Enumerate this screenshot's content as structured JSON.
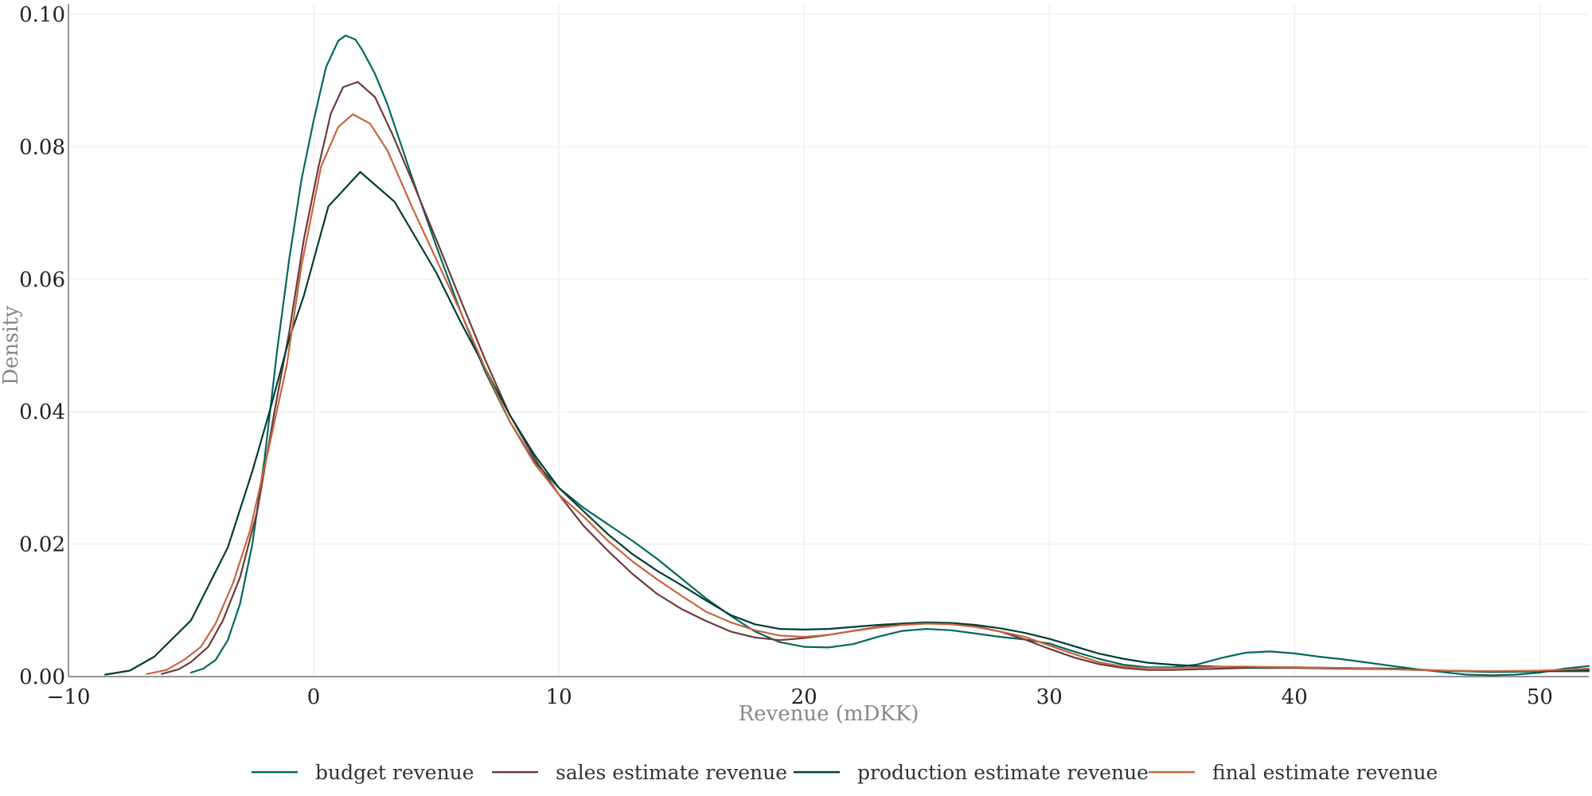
{
  "chart_data": {
    "type": "line",
    "title": "",
    "xlabel": "Revenue (mDKK)",
    "ylabel": "Density",
    "xlim": [
      -10,
      52
    ],
    "ylim": [
      0,
      0.1
    ],
    "x_ticks": [
      -10,
      0,
      10,
      20,
      30,
      40,
      50
    ],
    "x_tick_labels": [
      "−10",
      "0",
      "10",
      "20",
      "30",
      "40",
      "50"
    ],
    "y_ticks": [
      0,
      0.02,
      0.04,
      0.06,
      0.08,
      0.1
    ],
    "y_tick_labels": [
      "0.00",
      "0.02",
      "0.04",
      "0.06",
      "0.08",
      "0.10"
    ],
    "grid": true,
    "legend_position": "bottom-center",
    "series": [
      {
        "name": "budget revenue",
        "color": "#00695c",
        "points": [
          [
            -5,
            0.0006
          ],
          [
            -4.5,
            0.0012
          ],
          [
            -4,
            0.0025
          ],
          [
            -3.5,
            0.0055
          ],
          [
            -3,
            0.011
          ],
          [
            -2.5,
            0.02
          ],
          [
            -2,
            0.033
          ],
          [
            -1.5,
            0.049
          ],
          [
            -1,
            0.063
          ],
          [
            -0.5,
            0.075
          ],
          [
            0,
            0.084
          ],
          [
            0.5,
            0.092
          ],
          [
            1,
            0.096
          ],
          [
            1.3,
            0.0968
          ],
          [
            1.7,
            0.0962
          ],
          [
            2,
            0.0945
          ],
          [
            2.5,
            0.091
          ],
          [
            3,
            0.0865
          ],
          [
            4,
            0.0755
          ],
          [
            5,
            0.065
          ],
          [
            6,
            0.055
          ],
          [
            7,
            0.046
          ],
          [
            8,
            0.0385
          ],
          [
            9,
            0.0325
          ],
          [
            10,
            0.0285
          ],
          [
            11,
            0.0255
          ],
          [
            12,
            0.023
          ],
          [
            13,
            0.0205
          ],
          [
            14,
            0.0178
          ],
          [
            15,
            0.0148
          ],
          [
            16,
            0.0118
          ],
          [
            17,
            0.0092
          ],
          [
            18,
            0.0068
          ],
          [
            19,
            0.0052
          ],
          [
            20,
            0.0045
          ],
          [
            21,
            0.0044
          ],
          [
            22,
            0.0049
          ],
          [
            23,
            0.006
          ],
          [
            24,
            0.0069
          ],
          [
            25,
            0.0072
          ],
          [
            26,
            0.007
          ],
          [
            27,
            0.0065
          ],
          [
            28,
            0.006
          ],
          [
            29,
            0.0056
          ],
          [
            30,
            0.005
          ],
          [
            31,
            0.0038
          ],
          [
            32,
            0.0027
          ],
          [
            33,
            0.0018
          ],
          [
            34,
            0.0014
          ],
          [
            35,
            0.0014
          ],
          [
            36,
            0.0018
          ],
          [
            37,
            0.0028
          ],
          [
            38,
            0.0036
          ],
          [
            39,
            0.0038
          ],
          [
            40,
            0.0035
          ],
          [
            41,
            0.003
          ],
          [
            42,
            0.0026
          ],
          [
            43,
            0.0021
          ],
          [
            44,
            0.0016
          ],
          [
            45,
            0.0011
          ],
          [
            46,
            0.0007
          ],
          [
            47,
            0.0003
          ],
          [
            48,
            0.0002
          ],
          [
            49,
            0.0003
          ],
          [
            50,
            0.0006
          ],
          [
            51,
            0.0012
          ],
          [
            52,
            0.0016
          ]
        ]
      },
      {
        "name": "sales estimate revenue",
        "color": "#6d3b3b",
        "points": [
          [
            -6.2,
            0.0004
          ],
          [
            -5.5,
            0.0011
          ],
          [
            -5,
            0.0022
          ],
          [
            -4.3,
            0.0045
          ],
          [
            -3.7,
            0.0085
          ],
          [
            -3,
            0.015
          ],
          [
            -2.3,
            0.025
          ],
          [
            -1.6,
            0.04
          ],
          [
            -1,
            0.052
          ],
          [
            -0.4,
            0.066
          ],
          [
            0.2,
            0.077
          ],
          [
            0.7,
            0.085
          ],
          [
            1.2,
            0.089
          ],
          [
            1.8,
            0.0898
          ],
          [
            2.5,
            0.0875
          ],
          [
            3.2,
            0.082
          ],
          [
            4,
            0.075
          ],
          [
            5,
            0.066
          ],
          [
            6,
            0.0568
          ],
          [
            7,
            0.0478
          ],
          [
            8,
            0.0395
          ],
          [
            9,
            0.033
          ],
          [
            10,
            0.0275
          ],
          [
            11,
            0.0228
          ],
          [
            12,
            0.019
          ],
          [
            13,
            0.0155
          ],
          [
            14,
            0.0125
          ],
          [
            15,
            0.0102
          ],
          [
            16,
            0.0084
          ],
          [
            17,
            0.0068
          ],
          [
            18,
            0.0059
          ],
          [
            19,
            0.0055
          ],
          [
            20,
            0.0058
          ],
          [
            21,
            0.0063
          ],
          [
            22,
            0.0069
          ],
          [
            23,
            0.0075
          ],
          [
            24,
            0.0079
          ],
          [
            25,
            0.0081
          ],
          [
            26,
            0.008
          ],
          [
            27,
            0.0076
          ],
          [
            28,
            0.0068
          ],
          [
            29,
            0.0056
          ],
          [
            30,
            0.0042
          ],
          [
            31,
            0.0029
          ],
          [
            32,
            0.0019
          ],
          [
            33,
            0.0013
          ],
          [
            34,
            0.001
          ],
          [
            35,
            0.001
          ],
          [
            36,
            0.0011
          ],
          [
            37,
            0.0012
          ],
          [
            38,
            0.0013
          ],
          [
            39,
            0.0013
          ],
          [
            40,
            0.0013
          ],
          [
            42,
            0.0012
          ],
          [
            44,
            0.0011
          ],
          [
            46,
            0.0009
          ],
          [
            48,
            0.0008
          ],
          [
            50,
            0.0008
          ],
          [
            52,
            0.0008
          ]
        ]
      },
      {
        "name": "production estimate revenue",
        "color": "#003d35",
        "points": [
          [
            -8.5,
            0.0003
          ],
          [
            -7.5,
            0.0009
          ],
          [
            -6.5,
            0.003
          ],
          [
            -5,
            0.0085
          ],
          [
            -3.5,
            0.0195
          ],
          [
            -2.5,
            0.031
          ],
          [
            -1.8,
            0.04
          ],
          [
            -1,
            0.051
          ],
          [
            -0.4,
            0.0575
          ],
          [
            0.6,
            0.071
          ],
          [
            1.9,
            0.0762
          ],
          [
            3.3,
            0.0717
          ],
          [
            5,
            0.061
          ],
          [
            6,
            0.0535
          ],
          [
            7,
            0.0465
          ],
          [
            8,
            0.0395
          ],
          [
            9,
            0.0335
          ],
          [
            10,
            0.0285
          ],
          [
            11,
            0.025
          ],
          [
            12,
            0.0215
          ],
          [
            13,
            0.0185
          ],
          [
            14,
            0.016
          ],
          [
            15,
            0.0138
          ],
          [
            16,
            0.0115
          ],
          [
            17,
            0.0093
          ],
          [
            18,
            0.0079
          ],
          [
            19,
            0.0072
          ],
          [
            20,
            0.0071
          ],
          [
            21,
            0.0072
          ],
          [
            22,
            0.0075
          ],
          [
            23,
            0.0078
          ],
          [
            24,
            0.008
          ],
          [
            25,
            0.0082
          ],
          [
            26,
            0.0081
          ],
          [
            27,
            0.0078
          ],
          [
            28,
            0.0073
          ],
          [
            29,
            0.0066
          ],
          [
            30,
            0.0057
          ],
          [
            31,
            0.0046
          ],
          [
            32,
            0.0035
          ],
          [
            33,
            0.0027
          ],
          [
            34,
            0.0021
          ],
          [
            35,
            0.0018
          ],
          [
            36,
            0.0016
          ],
          [
            37,
            0.0015
          ],
          [
            38,
            0.0014
          ],
          [
            40,
            0.0014
          ],
          [
            42,
            0.0013
          ],
          [
            44,
            0.0012
          ],
          [
            46,
            0.0009
          ],
          [
            48,
            0.0007
          ],
          [
            50,
            0.0008
          ],
          [
            52,
            0.001
          ]
        ]
      },
      {
        "name": "final estimate revenue",
        "color": "#c8653f",
        "points": [
          [
            -6.8,
            0.0004
          ],
          [
            -6,
            0.001
          ],
          [
            -5.3,
            0.0025
          ],
          [
            -4.6,
            0.0045
          ],
          [
            -4,
            0.008
          ],
          [
            -3.3,
            0.014
          ],
          [
            -2.6,
            0.022
          ],
          [
            -1.8,
            0.035
          ],
          [
            -1.1,
            0.047
          ],
          [
            -0.5,
            0.062
          ],
          [
            0.3,
            0.077
          ],
          [
            1,
            0.083
          ],
          [
            1.6,
            0.0849
          ],
          [
            2.3,
            0.0835
          ],
          [
            3,
            0.0795
          ],
          [
            4,
            0.071
          ],
          [
            5,
            0.063
          ],
          [
            6,
            0.055
          ],
          [
            7,
            0.0465
          ],
          [
            8,
            0.0385
          ],
          [
            9,
            0.0322
          ],
          [
            10,
            0.0275
          ],
          [
            11,
            0.0242
          ],
          [
            12,
            0.0205
          ],
          [
            13,
            0.0174
          ],
          [
            14,
            0.0147
          ],
          [
            15,
            0.0122
          ],
          [
            16,
            0.0098
          ],
          [
            17,
            0.0082
          ],
          [
            18,
            0.007
          ],
          [
            19,
            0.0062
          ],
          [
            20,
            0.006
          ],
          [
            21,
            0.0063
          ],
          [
            22,
            0.0069
          ],
          [
            23,
            0.0074
          ],
          [
            24,
            0.0078
          ],
          [
            25,
            0.008
          ],
          [
            26,
            0.0079
          ],
          [
            27,
            0.0075
          ],
          [
            28,
            0.0068
          ],
          [
            29,
            0.006
          ],
          [
            30,
            0.0047
          ],
          [
            31,
            0.0034
          ],
          [
            32,
            0.0022
          ],
          [
            33,
            0.0015
          ],
          [
            34,
            0.0013
          ],
          [
            35,
            0.0013
          ],
          [
            36,
            0.0014
          ],
          [
            37,
            0.0015
          ],
          [
            38,
            0.0015
          ],
          [
            40,
            0.0014
          ],
          [
            42,
            0.0013
          ],
          [
            44,
            0.0011
          ],
          [
            46,
            0.0009
          ],
          [
            48,
            0.0008
          ],
          [
            50,
            0.0009
          ],
          [
            52,
            0.0012
          ]
        ]
      }
    ]
  }
}
